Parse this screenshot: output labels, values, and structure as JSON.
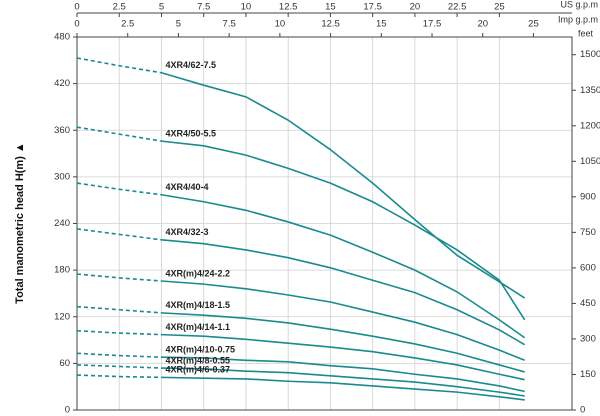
{
  "chart_data": {
    "type": "line",
    "y_label": "Total manometric head H(m) ▲",
    "y2_label": "feet",
    "x_label": "US g.p.m",
    "x2_label": "Imp g.p.m",
    "x": [
      0,
      2.5,
      5,
      7.5,
      10,
      12.5,
      15,
      17.5,
      20,
      22.5,
      25,
      26.5
    ],
    "xlim": [
      0,
      29.3
    ],
    "xticks": [
      0,
      2.5,
      5,
      7.5,
      10,
      12.5,
      15,
      17.5,
      20,
      22.5,
      25
    ],
    "x2lim": [
      0,
      24.4
    ],
    "x2ticks": [
      0,
      2.5,
      5,
      7.5,
      10,
      12.5,
      15,
      17.5,
      20,
      {
        "value": 22.5,
        "label": "25"
      }
    ],
    "ylim": [
      0,
      480
    ],
    "yticks": [
      0,
      60,
      120,
      180,
      240,
      300,
      360,
      420,
      480
    ],
    "y2lim": [
      0,
      1574.8
    ],
    "y2ticks": [
      0,
      150,
      300,
      450,
      600,
      750,
      900,
      1050,
      1200,
      1350,
      1500
    ],
    "grid": true,
    "series": [
      {
        "name": "4XR4/62-7.5",
        "color": "#1a8a8f",
        "values": [
          453,
          443,
          434,
          418,
          403,
          373,
          335,
          292,
          245,
          199,
          165,
          144
        ]
      },
      {
        "name": "4XR4/50-5.5",
        "color": "#1a8a8f",
        "values": [
          364,
          355,
          346,
          340,
          328,
          311,
          292,
          268,
          238,
          206,
          167,
          116
        ]
      },
      {
        "name": "4XR4/40-4",
        "color": "#1a8a8f",
        "values": [
          292,
          284,
          277,
          268,
          257,
          242,
          225,
          203,
          180,
          152,
          116,
          93
        ]
      },
      {
        "name": "4XR4/32-3",
        "color": "#1a8a8f",
        "values": [
          233,
          226,
          219,
          214,
          206,
          196,
          183,
          167,
          151,
          129,
          103,
          84
        ]
      },
      {
        "name": "4XR(m)4/24-2.2",
        "color": "#1a8a8f",
        "values": [
          175,
          170,
          166,
          162,
          156,
          148,
          139,
          126,
          113,
          97,
          77,
          64
        ]
      },
      {
        "name": "4XR(m)4/18-1.5",
        "color": "#1a8a8f",
        "values": [
          133,
          129,
          125,
          122,
          118,
          112,
          104,
          95,
          85,
          73,
          58,
          49
        ]
      },
      {
        "name": "4XR(m)4/14-1.1",
        "color": "#1a8a8f",
        "values": [
          102,
          99,
          97,
          95,
          91,
          86,
          81,
          75,
          67,
          58,
          46,
          39
        ]
      },
      {
        "name": "4XR(m)4/10-0.75",
        "color": "#1a8a8f",
        "values": [
          73,
          70,
          68,
          67,
          64,
          62,
          57,
          53,
          46,
          40,
          31,
          24
        ]
      },
      {
        "name": "4XR(m)4/8-0.55",
        "color": "#1a8a8f",
        "values": [
          58,
          56,
          54,
          53,
          50,
          48,
          44,
          40,
          36,
          30,
          23,
          18
        ]
      },
      {
        "name": "4XR(m)4/6-0.37",
        "color": "#1a8a8f",
        "values": [
          45,
          43,
          42,
          41,
          40,
          37,
          35,
          31,
          27,
          23,
          17,
          13
        ]
      }
    ]
  }
}
